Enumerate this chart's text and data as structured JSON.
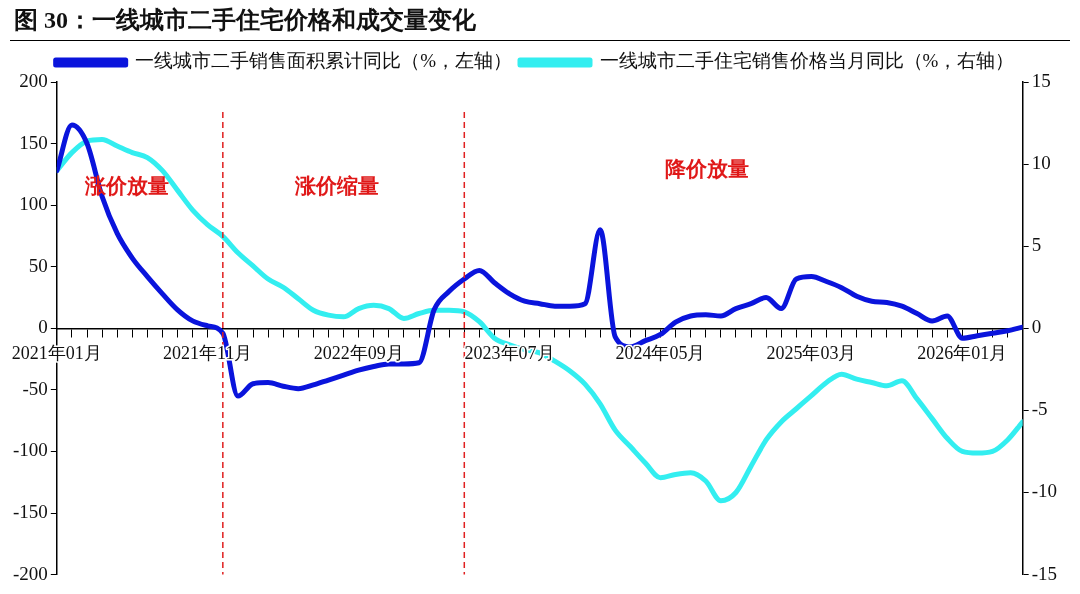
{
  "chart_data": {
    "type": "line",
    "title": "图 30：一线城市二手住宅价格和成交量变化",
    "legend": "top",
    "grid": false,
    "marker": "none",
    "line_style": "solid",
    "x": [
      "2021-01",
      "2021-02",
      "2021-03",
      "2021-04",
      "2021-05",
      "2021-06",
      "2021-07",
      "2021-08",
      "2021-09",
      "2021-10",
      "2021-11",
      "2021-12",
      "2022-01",
      "2022-02",
      "2022-03",
      "2022-04",
      "2022-05",
      "2022-06",
      "2022-07",
      "2022-08",
      "2022-09",
      "2022-10",
      "2022-11",
      "2022-12",
      "2023-01",
      "2023-02",
      "2023-03",
      "2023-04",
      "2023-05",
      "2023-06",
      "2023-07",
      "2023-08",
      "2023-09",
      "2023-10",
      "2023-11",
      "2023-12",
      "2024-01",
      "2024-02",
      "2024-03",
      "2024-04",
      "2024-05",
      "2024-06",
      "2024-07",
      "2024-08",
      "2024-09",
      "2024-10",
      "2024-11",
      "2024-12",
      "2025-01",
      "2025-02",
      "2025-03",
      "2025-04",
      "2025-05",
      "2025-06",
      "2025-07",
      "2025-08",
      "2025-09",
      "2025-10",
      "2025-11",
      "2025-12",
      "2026-01",
      "2026-02",
      "2026-03",
      "2026-04",
      "2026-05"
    ],
    "xlim": [
      "2021-01",
      "2026-05"
    ],
    "xticks": [
      {
        "value": "2021-01",
        "label": "2021年01月"
      },
      {
        "value": "2021-11",
        "label": "2021年11月"
      },
      {
        "value": "2022-09",
        "label": "2022年09月"
      },
      {
        "value": "2023-07",
        "label": "2023年07月"
      },
      {
        "value": "2024-05",
        "label": "2024年05月"
      },
      {
        "value": "2025-03",
        "label": "2025年03月"
      },
      {
        "value": "2026-01",
        "label": "2026年01月"
      }
    ],
    "ylim": [
      -200,
      200
    ],
    "yticks": [
      -200,
      -150,
      -100,
      -50,
      0,
      50,
      100,
      150,
      200
    ],
    "y2lim": [
      -15,
      15
    ],
    "y2ticks": [
      -15,
      -10,
      -5,
      0,
      5,
      10,
      15
    ],
    "series": [
      {
        "name": "一线城市二手销售面积累计同比（%，左轴）",
        "color": "#0a14dc",
        "values": [
          128,
          165,
          150,
          107,
          77,
          57,
          42,
          28,
          15,
          6,
          2,
          -4,
          -55,
          -45,
          -44,
          -47,
          -49,
          -46,
          -42,
          -38,
          -34,
          -31,
          -29,
          -29,
          -28,
          15,
          30,
          40,
          47,
          37,
          28,
          22,
          20,
          18,
          18,
          20,
          80,
          -7,
          -15,
          -10,
          -5,
          5,
          10,
          11,
          10,
          16,
          20,
          25,
          16,
          40,
          42,
          38,
          33,
          26,
          22,
          21,
          18,
          12,
          6,
          10,
          -8,
          -6,
          -4,
          -2,
          1
        ]
      },
      {
        "name": "一线城市二手住宅销售价格当月同比（%，右轴）",
        "color": "#33eef0",
        "axis": "y2",
        "values": [
          9.6,
          10.7,
          11.4,
          11.5,
          11.1,
          10.7,
          10.4,
          9.6,
          8.4,
          7.2,
          6.3,
          5.6,
          4.6,
          3.8,
          3.0,
          2.5,
          1.8,
          1.1,
          0.8,
          0.7,
          1.2,
          1.4,
          1.2,
          0.6,
          0.9,
          1.1,
          1.1,
          1.0,
          0.4,
          -0.6,
          -1.0,
          -1.3,
          -1.5,
          -2.0,
          -2.6,
          -3.4,
          -4.6,
          -6.2,
          -7.2,
          -8.2,
          -9.1,
          -8.9,
          -8.8,
          -9.3,
          -10.5,
          -10.0,
          -8.4,
          -6.8,
          -5.7,
          -4.9,
          -4.1,
          -3.3,
          -2.8,
          -3.1,
          -3.3,
          -3.5,
          -3.2,
          -4.3,
          -5.5,
          -6.7,
          -7.5,
          -7.6,
          -7.5,
          -6.8,
          -5.7
        ]
      }
    ],
    "ref_lines": [
      {
        "axis": "x",
        "value": "2021-12",
        "color": "#e02020",
        "line_style": "dashed"
      },
      {
        "axis": "x",
        "value": "2023-04",
        "color": "#e02020",
        "line_style": "dashed"
      }
    ],
    "annotations": [
      "涨价放量",
      "涨价缩量",
      "降价放量"
    ]
  }
}
